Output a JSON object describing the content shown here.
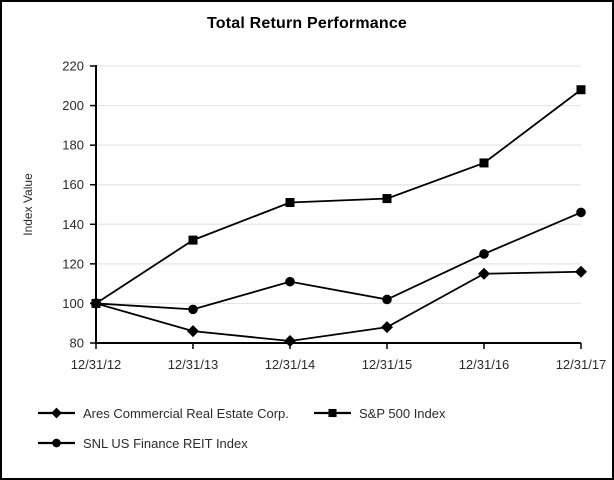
{
  "title": "Total Return Performance",
  "chart_data": {
    "type": "line",
    "title": "Total Return Performance",
    "xlabel": "",
    "ylabel": "Index Value",
    "ylim": [
      80,
      220
    ],
    "ytick_step": 20,
    "grid": "horizontal",
    "legend_position": "bottom-left",
    "categories": [
      "12/31/12",
      "12/31/13",
      "12/31/14",
      "12/31/15",
      "12/31/16",
      "12/31/17"
    ],
    "series": [
      {
        "name": "Ares Commercial Real Estate Corp.",
        "marker": "diamond",
        "values": [
          100,
          86,
          81,
          88,
          115,
          116
        ]
      },
      {
        "name": "S&P 500 Index",
        "marker": "square",
        "values": [
          100,
          132,
          151,
          153,
          171,
          208
        ]
      },
      {
        "name": "SNL US Finance REIT Index",
        "marker": "circle",
        "values": [
          100,
          97,
          111,
          102,
          125,
          146
        ]
      }
    ],
    "colors": {
      "line": "#000000",
      "marker": "#000000",
      "grid": "#e5e5e5",
      "axis": "#000000",
      "text": "#2b2b2b",
      "title": "#000000",
      "background": "#ffffff",
      "border": "#000000"
    }
  }
}
